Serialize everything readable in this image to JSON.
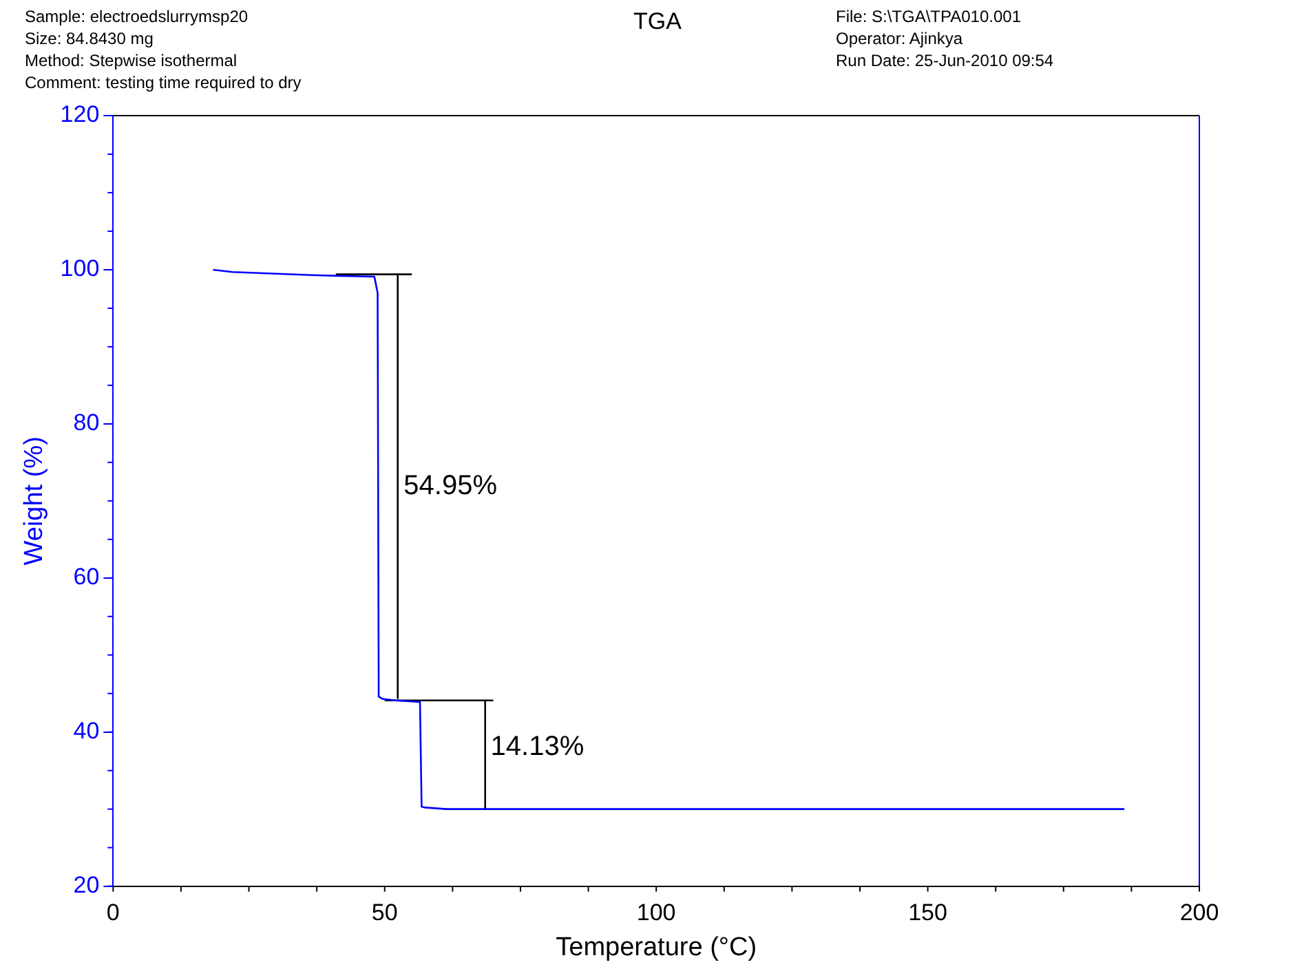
{
  "chart_data": {
    "type": "line",
    "title": "TGA",
    "xlabel": "Temperature (°C)",
    "ylabel": "Weight (%)",
    "xlim": [
      0,
      200
    ],
    "xticks": [
      0,
      50,
      100,
      150,
      200
    ],
    "ylim": [
      20,
      120
    ],
    "yticks": [
      20,
      40,
      60,
      80,
      100,
      120
    ],
    "grid": false,
    "legend": false,
    "marker": "none",
    "line_style": "solid",
    "series": [
      {
        "color": "#0000ff",
        "x": [
          18.4,
          22,
          36.6,
          41.7,
          48.1,
          48.7,
          48.9,
          49.6,
          52,
          56.5,
          56.8,
          57.5,
          61.4,
          186.2
        ],
        "values": [
          100,
          99.7,
          99.3,
          99.2,
          99.1,
          97,
          44.6,
          44.3,
          44.1,
          43.9,
          30.3,
          30.2,
          30,
          30
        ]
      },
      {
        "color": "#000000",
        "x": [
          41,
          55
        ],
        "values": [
          99.4,
          99.4
        ]
      },
      {
        "color": "#000000",
        "x": [
          52.4,
          52.4
        ],
        "values": [
          99.4,
          44.4
        ]
      },
      {
        "color": "#000000",
        "x": [
          50,
          70
        ],
        "values": [
          44.1,
          44.1
        ]
      },
      {
        "color": "#000000",
        "x": [
          68.5,
          68.5
        ],
        "values": [
          44.1,
          30
        ]
      }
    ],
    "annotations": [
      {
        "text": "54.95%",
        "x": 53.5,
        "y": 71.9
      },
      {
        "text": "14.13%",
        "x": 69.5,
        "y": 38
      },
      "Sample: electroedslurrymsp20",
      "Size:  84.8430 mg",
      "Method: Stepwise isothermal",
      "Comment: testing time required to dry",
      "File: S:\\TGA\\TPA010.001",
      "Operator: Ajinkya",
      "Run Date: 25-Jun-2010 09:54"
    ]
  }
}
